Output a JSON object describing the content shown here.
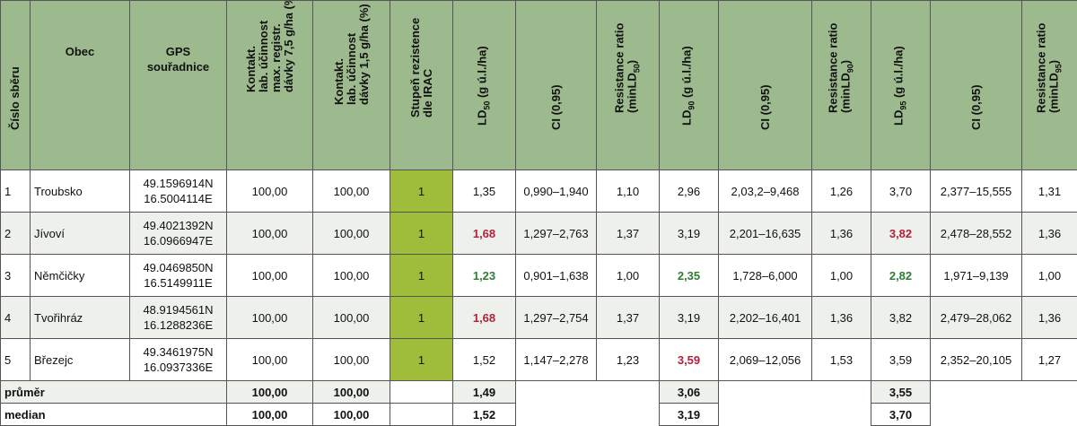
{
  "headers": {
    "cislo": "Číslo sběru",
    "obec": "Obec",
    "gps": [
      "GPS",
      "souřadnice"
    ],
    "kontakt75": [
      "Kontakt.",
      "lab. účinnost",
      "max. registr.",
      "dávky 7,5 g/ha (%)"
    ],
    "kontakt15": [
      "Kontakt.",
      "lab. účinnost",
      "dávky 1,5 g/ha (%)"
    ],
    "stupen": [
      "Stupeň rezistence",
      "dle IRAC"
    ],
    "ld50": "LD50 (g ú.l./ha)",
    "ci1": "CI (0,95)",
    "rr50": [
      "Resistance ratio",
      "(minLD50)"
    ],
    "ld90": "LD90 (g ú.l./ha)",
    "ci2": "CI (0,95)",
    "rr90": [
      "Resistance ratio",
      "(minLD90)"
    ],
    "ld95": "LD95 (g ú.l./ha)",
    "ci3": "CI (0,95)",
    "rr95": [
      "Resistance ratio",
      "(minLD95)"
    ]
  },
  "rows": [
    {
      "n": "1",
      "obec": "Troubsko",
      "gps1": "49.1596914N",
      "gps2": "16.5004114E",
      "k75": "100,00",
      "k15": "100,00",
      "irac": "1",
      "ld50": "1,35",
      "ci1": "0,990–1,940",
      "rr50": "1,10",
      "ld90": "2,96",
      "ci2": "2,03,2–9,468",
      "rr90": "1,26",
      "ld95": "3,70",
      "ci3": "2,377–15,555",
      "rr95": "1,31"
    },
    {
      "n": "2",
      "obec": "Jívoví",
      "gps1": "49.4021392N",
      "gps2": "16.0966947E",
      "k75": "100,00",
      "k15": "100,00",
      "irac": "1",
      "ld50": "1,68",
      "ci1": "1,297–2,763",
      "rr50": "1,37",
      "ld90": "3,19",
      "ci2": "2,201–16,635",
      "rr90": "1,36",
      "ld95": "3,82",
      "ci3": "2,478–28,552",
      "rr95": "1,36"
    },
    {
      "n": "3",
      "obec": "Němčičky",
      "gps1": "49.0469850N",
      "gps2": "16.5149911E",
      "k75": "100,00",
      "k15": "100,00",
      "irac": "1",
      "ld50": "1,23",
      "ci1": "0,901–1,638",
      "rr50": "1,00",
      "ld90": "2,35",
      "ci2": "1,728–6,000",
      "rr90": "1,00",
      "ld95": "2,82",
      "ci3": "1,971–9,139",
      "rr95": "1,00"
    },
    {
      "n": "4",
      "obec": "Tvořihráz",
      "gps1": "48.9194561N",
      "gps2": "16.1288236E",
      "k75": "100,00",
      "k15": "100,00",
      "irac": "1",
      "ld50": "1,68",
      "ci1": "1,297–2,754",
      "rr50": "1,37",
      "ld90": "3,19",
      "ci2": "2,202–16,401",
      "rr90": "1,36",
      "ld95": "3,82",
      "ci3": "2,479–28,062",
      "rr95": "1,36"
    },
    {
      "n": "5",
      "obec": "Březejc",
      "gps1": "49.3461975N",
      "gps2": "16.0937336E",
      "k75": "100,00",
      "k15": "100,00",
      "irac": "1",
      "ld50": "1,52",
      "ci1": "1,147–2,278",
      "rr50": "1,23",
      "ld90": "3,59",
      "ci2": "2,069–12,056",
      "rr90": "1,53",
      "ld95": "3,59",
      "ci3": "2,352–20,105",
      "rr95": "1,27"
    }
  ],
  "summary": {
    "prumer": {
      "label": "průměr",
      "k75": "100,00",
      "k15": "100,00",
      "ld50": "1,49",
      "ld90": "3,06",
      "ld95": "3,55"
    },
    "median": {
      "label": "median",
      "k75": "100,00",
      "k15": "100,00",
      "ld50": "1,52",
      "ld90": "3,19",
      "ld95": "3,70"
    }
  },
  "colors": {
    "header_bg": "#9dba8e",
    "irac_bg": "#9fbc3a",
    "highlight_red": "#b3213a",
    "highlight_green": "#2e7d32",
    "alt_row": "#eef0ec"
  }
}
